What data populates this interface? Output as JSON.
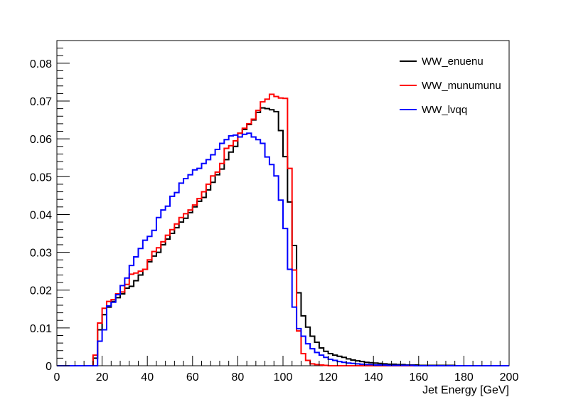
{
  "chart_data": {
    "type": "histogram",
    "title": "",
    "xlabel": "Jet Energy [GeV]",
    "ylabel": "",
    "xlim": [
      0,
      200
    ],
    "ylim": [
      0,
      0.086
    ],
    "bin_width": 2,
    "x_ticks": [
      0,
      20,
      40,
      60,
      80,
      100,
      120,
      140,
      160,
      180,
      200
    ],
    "y_ticks": [
      0,
      0.01,
      0.02,
      0.03,
      0.04,
      0.05,
      0.06,
      0.07,
      0.08
    ],
    "x_tick_labels": [
      "0",
      "20",
      "40",
      "60",
      "80",
      "100",
      "120",
      "140",
      "160",
      "180",
      "200"
    ],
    "y_tick_labels": [
      "0",
      "0.01",
      "0.02",
      "0.03",
      "0.04",
      "0.05",
      "0.06",
      "0.07",
      "0.08"
    ],
    "grid": false,
    "legend_position": "top-right",
    "series": [
      {
        "name": "WW_enuenu",
        "color": "#000000",
        "values": [
          0,
          0,
          0,
          0,
          0,
          0,
          0,
          0,
          0.002,
          0.0095,
          0.0135,
          0.0155,
          0.017,
          0.018,
          0.019,
          0.0205,
          0.021,
          0.0225,
          0.024,
          0.0255,
          0.0275,
          0.029,
          0.03,
          0.032,
          0.0335,
          0.035,
          0.0365,
          0.038,
          0.039,
          0.0405,
          0.042,
          0.0435,
          0.0445,
          0.0465,
          0.0485,
          0.0505,
          0.052,
          0.0545,
          0.0565,
          0.058,
          0.0615,
          0.0625,
          0.0638,
          0.065,
          0.067,
          0.0682,
          0.068,
          0.0677,
          0.0672,
          0.0622,
          0.0553,
          0.0433,
          0.0318,
          0.0193,
          0.0132,
          0.0102,
          0.0078,
          0.0062,
          0.0047,
          0.0038,
          0.0032,
          0.0028,
          0.0025,
          0.0022,
          0.0018,
          0.0015,
          0.0013,
          0.0011,
          0.0009,
          0.0008,
          0.0007,
          0.0006,
          0.0005,
          0.0004,
          0.0004,
          0.0003,
          0.0003,
          0.0002,
          0.0002,
          0.0002,
          0.0001,
          0.0001,
          0.0001,
          0.0001,
          0.0001,
          0.0001,
          0.0001,
          0.0001,
          0,
          0,
          0,
          0,
          0,
          0,
          0,
          0,
          0,
          0,
          0,
          0
        ]
      },
      {
        "name": "WW_munumunu",
        "color": "#ff0000",
        "values": [
          0,
          0,
          0,
          0,
          0,
          0,
          0,
          0,
          0.0028,
          0.0113,
          0.0152,
          0.017,
          0.0175,
          0.019,
          0.0195,
          0.0215,
          0.0242,
          0.0245,
          0.025,
          0.0255,
          0.028,
          0.0302,
          0.0312,
          0.0328,
          0.0345,
          0.036,
          0.0375,
          0.0392,
          0.0402,
          0.0412,
          0.0425,
          0.0442,
          0.046,
          0.048,
          0.0502,
          0.0512,
          0.0535,
          0.0575,
          0.0582,
          0.0595,
          0.0615,
          0.0628,
          0.064,
          0.0652,
          0.0675,
          0.0698,
          0.0705,
          0.0718,
          0.0712,
          0.0708,
          0.0707,
          0.0522,
          0.0253,
          0.0092,
          0.0032,
          0.0014,
          0.0005,
          0.0003,
          0.0002,
          0.0001,
          0,
          0,
          0,
          0,
          0,
          0,
          0,
          0,
          0,
          0,
          0,
          0,
          0,
          0,
          0,
          0,
          0,
          0,
          0,
          0,
          0,
          0,
          0,
          0,
          0,
          0,
          0,
          0,
          0,
          0,
          0,
          0,
          0,
          0,
          0,
          0,
          0,
          0,
          0,
          0
        ]
      },
      {
        "name": "WW_lvqq",
        "color": "#0000ff",
        "values": [
          0,
          0,
          0,
          0,
          0,
          0,
          0,
          0,
          0,
          0.0065,
          0.0095,
          0.0158,
          0.0168,
          0.0188,
          0.0212,
          0.0232,
          0.0265,
          0.0288,
          0.031,
          0.0332,
          0.0342,
          0.0358,
          0.0392,
          0.0412,
          0.0422,
          0.0448,
          0.0458,
          0.0483,
          0.0495,
          0.0505,
          0.0518,
          0.0522,
          0.0535,
          0.0545,
          0.0558,
          0.0572,
          0.0588,
          0.0598,
          0.0608,
          0.061,
          0.0605,
          0.0612,
          0.0615,
          0.0605,
          0.0598,
          0.0588,
          0.0552,
          0.0532,
          0.0502,
          0.0438,
          0.0363,
          0.0255,
          0.0155,
          0.0098,
          0.0078,
          0.0058,
          0.0045,
          0.0035,
          0.0028,
          0.0022,
          0.0017,
          0.0014,
          0.0011,
          0.0009,
          0.0007,
          0.0006,
          0.0005,
          0.0004,
          0.0003,
          0.0003,
          0.0002,
          0.0002,
          0.0002,
          0.0001,
          0.0001,
          0.0001,
          0.0001,
          0.0001,
          0.0001,
          0,
          0,
          0,
          0,
          0,
          0,
          0,
          0,
          0,
          0,
          0,
          0,
          0,
          0,
          0,
          0,
          0,
          0,
          0,
          0,
          0
        ]
      }
    ]
  }
}
